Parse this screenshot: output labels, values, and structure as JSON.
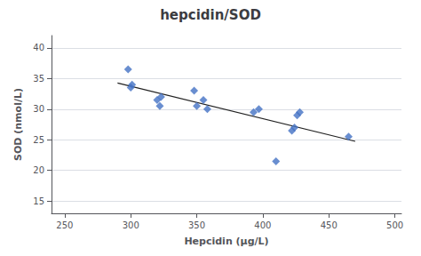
{
  "chart_data": {
    "type": "scatter",
    "title": "hepcidin/SOD",
    "x_label": "Hepcidin (μg/L)",
    "y_label": "SOD (nmol/L)",
    "series": [
      {
        "type": "scatter",
        "marker": "diamond",
        "color": "#4472C4",
        "x": [
          298,
          300,
          301,
          320,
          322,
          323,
          348,
          350,
          355,
          358,
          393,
          397,
          410,
          422,
          424,
          426,
          428,
          465
        ],
        "values": [
          36.5,
          33.5,
          34.0,
          31.5,
          30.5,
          32.0,
          33.0,
          30.5,
          31.5,
          30.0,
          29.5,
          30.0,
          21.5,
          26.5,
          27.0,
          29.0,
          29.5,
          25.5
        ]
      },
      {
        "type": "line",
        "color": "#222222",
        "x": [
          290,
          470
        ],
        "values": [
          34.2493,
          24.7438
        ]
      }
    ],
    "xlim": [
      240,
      505
    ],
    "xticks": [
      250,
      300,
      350,
      400,
      450,
      500
    ],
    "ylim": [
      13,
      42
    ],
    "yticks": [
      15,
      20,
      25,
      30,
      35,
      40
    ],
    "grid": true
  }
}
